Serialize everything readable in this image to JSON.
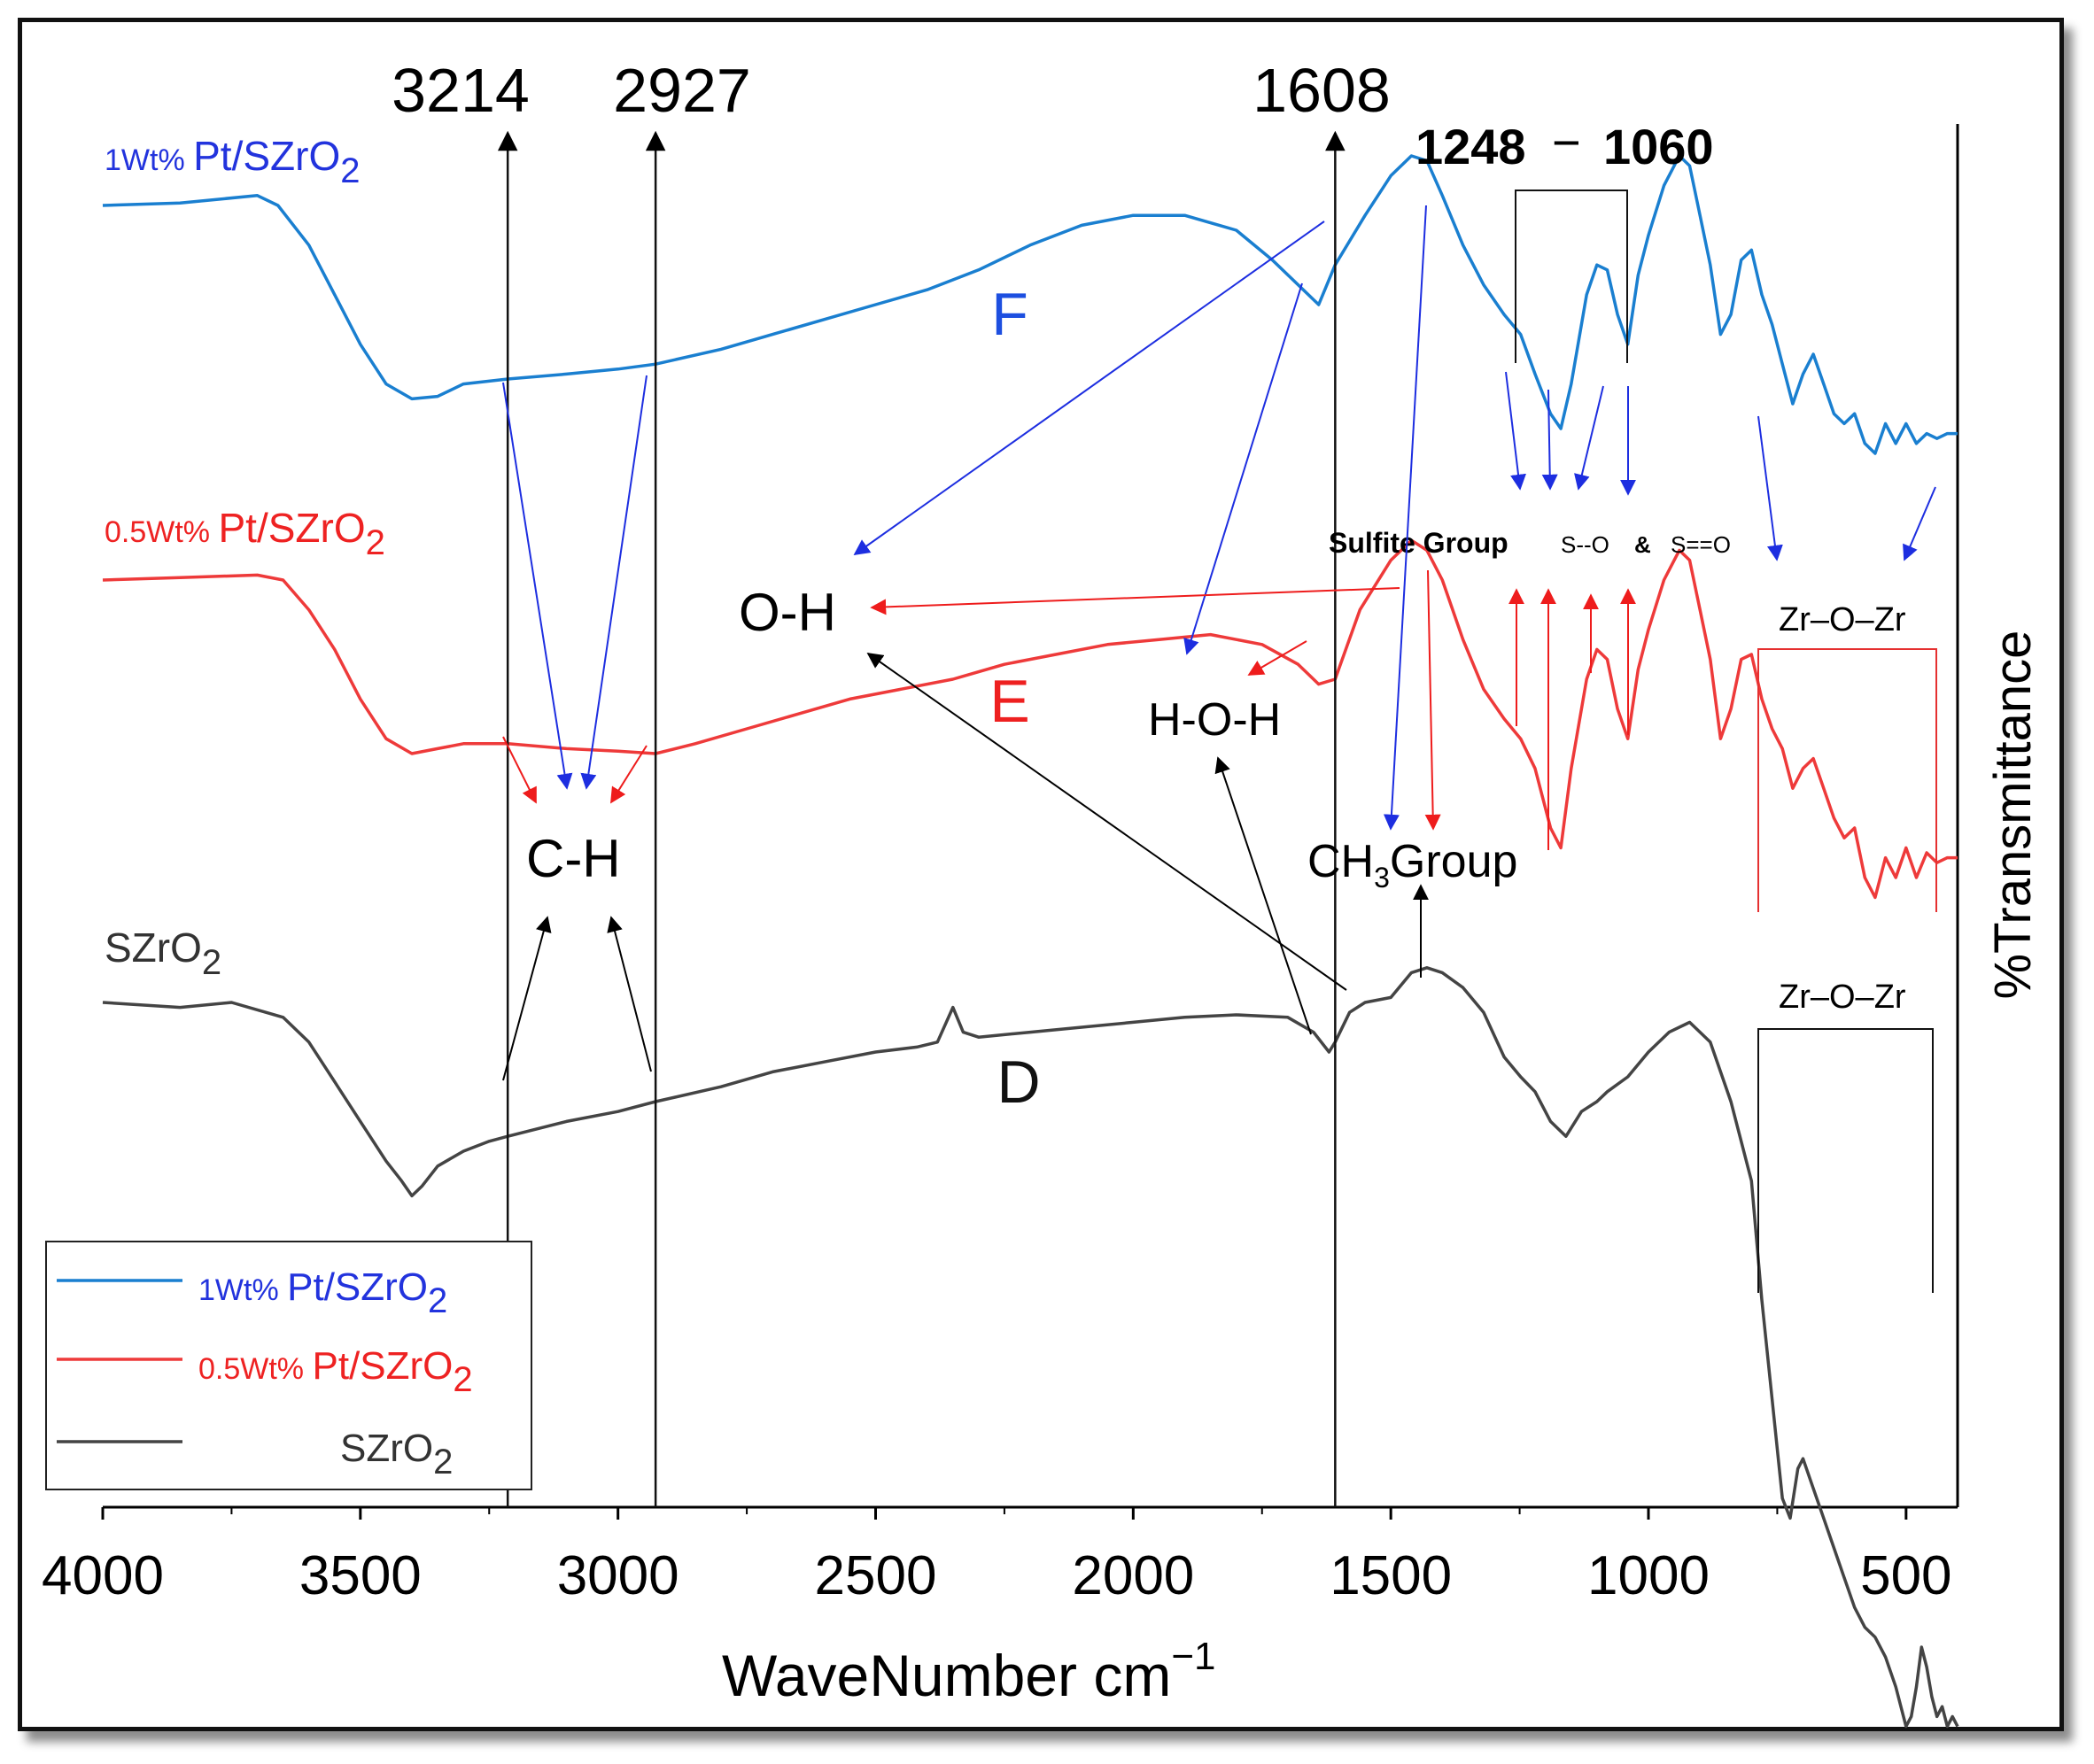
{
  "chart_data": {
    "type": "line",
    "title": "",
    "xlabel": "WaveNumber cm",
    "xlabel_unit_sup": "−1",
    "ylabel": "%Transmittance",
    "xlim": [
      4000,
      400
    ],
    "x_reversed": true,
    "xticks": [
      4000,
      3500,
      3000,
      2500,
      2000,
      1500,
      1000,
      500
    ],
    "grid": false,
    "legend_position": "bottom-left",
    "y_units": "arbitrary (offset spectra)",
    "series": [
      {
        "name": "1Wt% Pt/SZrO2",
        "legend_prefix": "1Wt%",
        "legend_main": "Pt/SZrO",
        "legend_sub": "2",
        "curve_label": "F",
        "color": "#1a7fd0",
        "points": [
          [
            4000,
            46
          ],
          [
            3850,
            46.5
          ],
          [
            3700,
            48
          ],
          [
            3660,
            46
          ],
          [
            3600,
            38
          ],
          [
            3550,
            28
          ],
          [
            3500,
            18
          ],
          [
            3450,
            10
          ],
          [
            3400,
            7
          ],
          [
            3350,
            7.5
          ],
          [
            3300,
            10
          ],
          [
            3214,
            11
          ],
          [
            3100,
            12
          ],
          [
            3000,
            13
          ],
          [
            2927,
            14
          ],
          [
            2800,
            17
          ],
          [
            2700,
            20
          ],
          [
            2600,
            23
          ],
          [
            2500,
            26
          ],
          [
            2400,
            29
          ],
          [
            2300,
            33
          ],
          [
            2200,
            38
          ],
          [
            2100,
            42
          ],
          [
            2000,
            44
          ],
          [
            1900,
            44
          ],
          [
            1800,
            41
          ],
          [
            1730,
            35
          ],
          [
            1680,
            30
          ],
          [
            1640,
            26
          ],
          [
            1608,
            34
          ],
          [
            1550,
            44
          ],
          [
            1500,
            52
          ],
          [
            1460,
            56
          ],
          [
            1430,
            55
          ],
          [
            1400,
            48
          ],
          [
            1360,
            38
          ],
          [
            1320,
            30
          ],
          [
            1280,
            24
          ],
          [
            1248,
            20
          ],
          [
            1220,
            12
          ],
          [
            1190,
            4
          ],
          [
            1170,
            1
          ],
          [
            1150,
            10
          ],
          [
            1120,
            28
          ],
          [
            1100,
            34
          ],
          [
            1080,
            33
          ],
          [
            1060,
            24
          ],
          [
            1040,
            18
          ],
          [
            1020,
            32
          ],
          [
            1000,
            40
          ],
          [
            970,
            50
          ],
          [
            940,
            56
          ],
          [
            920,
            54
          ],
          [
            900,
            44
          ],
          [
            880,
            34
          ],
          [
            860,
            20
          ],
          [
            840,
            24
          ],
          [
            820,
            35
          ],
          [
            800,
            37
          ],
          [
            780,
            28
          ],
          [
            760,
            22
          ],
          [
            740,
            14
          ],
          [
            720,
            6
          ],
          [
            700,
            12
          ],
          [
            680,
            16
          ],
          [
            660,
            10
          ],
          [
            640,
            4
          ],
          [
            620,
            2
          ],
          [
            600,
            4
          ],
          [
            580,
            -2
          ],
          [
            560,
            -4
          ],
          [
            540,
            2
          ],
          [
            520,
            -2
          ],
          [
            500,
            2
          ],
          [
            480,
            -2
          ],
          [
            460,
            0
          ],
          [
            440,
            -1
          ],
          [
            420,
            0
          ],
          [
            400,
            0
          ]
        ]
      },
      {
        "name": "0.5Wt% Pt/SZrO2",
        "legend_prefix": "0.5Wt%",
        "legend_main": "Pt/SZrO",
        "legend_sub": "2",
        "curve_label": "E",
        "color": "#ee3a3a",
        "points": [
          [
            4000,
            46
          ],
          [
            3850,
            46.5
          ],
          [
            3700,
            47
          ],
          [
            3650,
            46
          ],
          [
            3600,
            40
          ],
          [
            3550,
            32
          ],
          [
            3500,
            22
          ],
          [
            3450,
            14
          ],
          [
            3400,
            11
          ],
          [
            3350,
            12
          ],
          [
            3300,
            13
          ],
          [
            3214,
            13
          ],
          [
            3100,
            12
          ],
          [
            3000,
            11.5
          ],
          [
            2927,
            11
          ],
          [
            2850,
            13
          ],
          [
            2750,
            16
          ],
          [
            2650,
            19
          ],
          [
            2550,
            22
          ],
          [
            2450,
            24
          ],
          [
            2350,
            26
          ],
          [
            2250,
            29
          ],
          [
            2150,
            31
          ],
          [
            2050,
            33
          ],
          [
            1950,
            34
          ],
          [
            1850,
            35
          ],
          [
            1750,
            33
          ],
          [
            1680,
            29
          ],
          [
            1640,
            25
          ],
          [
            1608,
            26
          ],
          [
            1560,
            40
          ],
          [
            1500,
            50
          ],
          [
            1460,
            54
          ],
          [
            1430,
            52
          ],
          [
            1400,
            46
          ],
          [
            1360,
            34
          ],
          [
            1320,
            24
          ],
          [
            1280,
            18
          ],
          [
            1248,
            14
          ],
          [
            1220,
            8
          ],
          [
            1190,
            -4
          ],
          [
            1170,
            -8
          ],
          [
            1150,
            8
          ],
          [
            1120,
            26
          ],
          [
            1100,
            32
          ],
          [
            1080,
            30
          ],
          [
            1060,
            20
          ],
          [
            1040,
            14
          ],
          [
            1020,
            28
          ],
          [
            1000,
            36
          ],
          [
            970,
            46
          ],
          [
            940,
            52
          ],
          [
            920,
            50
          ],
          [
            900,
            40
          ],
          [
            880,
            30
          ],
          [
            860,
            14
          ],
          [
            840,
            20
          ],
          [
            820,
            30
          ],
          [
            800,
            31
          ],
          [
            780,
            22
          ],
          [
            760,
            16
          ],
          [
            740,
            12
          ],
          [
            720,
            4
          ],
          [
            700,
            8
          ],
          [
            680,
            10
          ],
          [
            660,
            4
          ],
          [
            640,
            -2
          ],
          [
            620,
            -6
          ],
          [
            600,
            -4
          ],
          [
            580,
            -14
          ],
          [
            560,
            -18
          ],
          [
            540,
            -10
          ],
          [
            520,
            -14
          ],
          [
            500,
            -8
          ],
          [
            480,
            -14
          ],
          [
            460,
            -9
          ],
          [
            440,
            -11
          ],
          [
            420,
            -10
          ],
          [
            400,
            -10
          ]
        ]
      },
      {
        "name": "SZrO2",
        "legend_prefix": "",
        "legend_main": "SZrO",
        "legend_sub": "2",
        "curve_label": "D",
        "color": "#444444",
        "points": [
          [
            4000,
            46
          ],
          [
            3850,
            45
          ],
          [
            3750,
            46
          ],
          [
            3650,
            43
          ],
          [
            3600,
            38
          ],
          [
            3550,
            30
          ],
          [
            3500,
            22
          ],
          [
            3450,
            14
          ],
          [
            3420,
            10
          ],
          [
            3400,
            7
          ],
          [
            3380,
            9
          ],
          [
            3350,
            13
          ],
          [
            3300,
            16
          ],
          [
            3250,
            18
          ],
          [
            3214,
            19
          ],
          [
            3100,
            22
          ],
          [
            3000,
            24
          ],
          [
            2927,
            26
          ],
          [
            2800,
            29
          ],
          [
            2700,
            32
          ],
          [
            2600,
            34
          ],
          [
            2500,
            36
          ],
          [
            2420,
            37
          ],
          [
            2380,
            38
          ],
          [
            2350,
            45
          ],
          [
            2330,
            40
          ],
          [
            2300,
            39
          ],
          [
            2200,
            40
          ],
          [
            2100,
            41
          ],
          [
            2000,
            42
          ],
          [
            1900,
            43
          ],
          [
            1800,
            43.5
          ],
          [
            1700,
            43
          ],
          [
            1650,
            40
          ],
          [
            1620,
            36
          ],
          [
            1608,
            38
          ],
          [
            1580,
            44
          ],
          [
            1550,
            46
          ],
          [
            1500,
            47
          ],
          [
            1460,
            52
          ],
          [
            1430,
            53
          ],
          [
            1400,
            52
          ],
          [
            1360,
            49
          ],
          [
            1320,
            44
          ],
          [
            1280,
            35
          ],
          [
            1248,
            31
          ],
          [
            1220,
            28
          ],
          [
            1190,
            22
          ],
          [
            1160,
            19
          ],
          [
            1130,
            24
          ],
          [
            1100,
            26
          ],
          [
            1080,
            28
          ],
          [
            1040,
            31
          ],
          [
            1000,
            36
          ],
          [
            960,
            40
          ],
          [
            920,
            42
          ],
          [
            880,
            38
          ],
          [
            840,
            26
          ],
          [
            800,
            10
          ],
          [
            780,
            -14
          ],
          [
            760,
            -34
          ],
          [
            740,
            -54
          ],
          [
            725,
            -58
          ],
          [
            710,
            -48
          ],
          [
            700,
            -46
          ],
          [
            680,
            -52
          ],
          [
            660,
            -58
          ],
          [
            640,
            -64
          ],
          [
            620,
            -70
          ],
          [
            600,
            -76
          ],
          [
            580,
            -80
          ],
          [
            560,
            -82
          ],
          [
            540,
            -86
          ],
          [
            520,
            -92
          ],
          [
            510,
            -96
          ],
          [
            500,
            -100
          ],
          [
            490,
            -98
          ],
          [
            480,
            -92
          ],
          [
            470,
            -84
          ],
          [
            460,
            -88
          ],
          [
            450,
            -94
          ],
          [
            440,
            -98
          ],
          [
            430,
            -96
          ],
          [
            420,
            -100
          ],
          [
            410,
            -98
          ],
          [
            400,
            -100
          ]
        ]
      }
    ],
    "peak_markers": [
      {
        "label": "3214",
        "x": 3214
      },
      {
        "label": "2927",
        "x": 2927
      },
      {
        "label": "1608",
        "x": 1608
      }
    ],
    "range_marker": {
      "label_start": "1248",
      "dash": "−",
      "label_end": "1060",
      "x_start": 1248,
      "x_end": 1060
    },
    "annotations": {
      "ch": "C-H",
      "oh": "O-H",
      "hoh": "H-O-H",
      "ch3_prefix": "CH",
      "ch3_sub": "3",
      "ch3_suffix": "Group",
      "sulfite": "Sulfite Group",
      "so_single": "S--O",
      "so_amp": "&",
      "so_double": "S==O",
      "zr_upper": "Zr–O–Zr",
      "zr_lower": "Zr–O–Zr"
    }
  }
}
